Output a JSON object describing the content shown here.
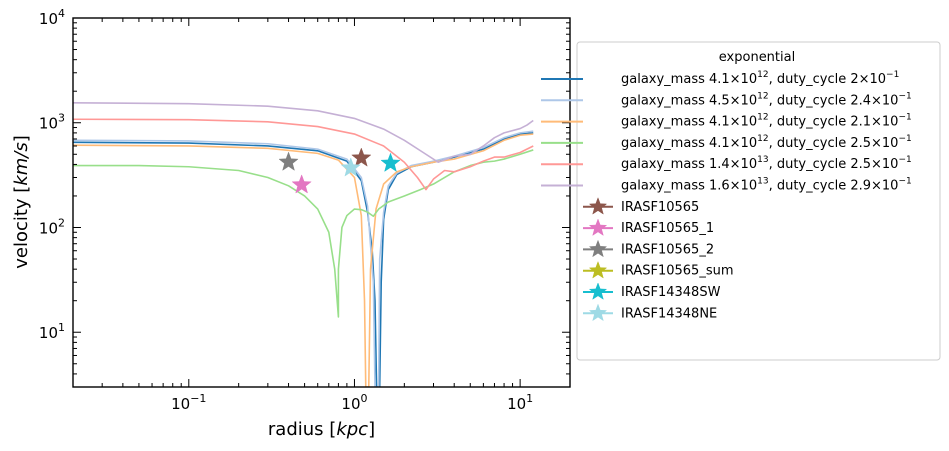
{
  "chart_data": {
    "type": "line",
    "xscale": "log",
    "yscale": "log",
    "xlim": [
      0.02,
      20
    ],
    "ylim": [
      3,
      10000
    ],
    "grid": false,
    "legend_placement": "right-outside",
    "xlabel_text": "radius",
    "xlabel_unit": "kpc",
    "ylabel_text": "velocity",
    "ylabel_unit": "km/s",
    "xticks": [
      {
        "value": 0.1,
        "base": "10",
        "exp": "−1"
      },
      {
        "value": 1,
        "base": "10",
        "exp": "0"
      },
      {
        "value": 10,
        "base": "10",
        "exp": "1"
      }
    ],
    "yticks": [
      {
        "value": 10,
        "base": "10",
        "exp": "1"
      },
      {
        "value": 100,
        "base": "10",
        "exp": "2"
      },
      {
        "value": 1000,
        "base": "10",
        "exp": "3"
      },
      {
        "value": 10000,
        "base": "10",
        "exp": "4"
      }
    ],
    "legend_title": "exponential",
    "series": [
      {
        "name_parts": [
          "galaxy_mass 4.1×10",
          "12",
          ", duty_cycle 2×10",
          "−1",
          ""
        ],
        "color": "#1f77b4",
        "points": [
          [
            0.02,
            650
          ],
          [
            0.1,
            640
          ],
          [
            0.3,
            600
          ],
          [
            0.6,
            540
          ],
          [
            0.9,
            430
          ],
          [
            1.1,
            280
          ],
          [
            1.2,
            140
          ],
          [
            1.28,
            60
          ],
          [
            1.33,
            20
          ],
          [
            1.36,
            3
          ],
          [
            1.42,
            3
          ],
          [
            1.45,
            30
          ],
          [
            1.5,
            120
          ],
          [
            1.6,
            230
          ],
          [
            1.8,
            320
          ],
          [
            2.2,
            380
          ],
          [
            3,
            420
          ],
          [
            4,
            470
          ],
          [
            5,
            520
          ],
          [
            6,
            560
          ],
          [
            8,
            700
          ],
          [
            10,
            780
          ],
          [
            12,
            800
          ]
        ]
      },
      {
        "name_parts": [
          "galaxy_mass 4.5×10",
          "12",
          ", duty_cycle 2.4×10",
          "−1",
          ""
        ],
        "color": "#aec7e8",
        "points": [
          [
            0.02,
            680
          ],
          [
            0.1,
            670
          ],
          [
            0.3,
            630
          ],
          [
            0.6,
            560
          ],
          [
            0.9,
            450
          ],
          [
            1.1,
            300
          ],
          [
            1.2,
            160
          ],
          [
            1.3,
            30
          ],
          [
            1.33,
            3
          ],
          [
            1.4,
            3
          ],
          [
            1.42,
            50
          ],
          [
            1.5,
            140
          ],
          [
            1.6,
            250
          ],
          [
            1.8,
            330
          ],
          [
            2.2,
            390
          ],
          [
            3,
            430
          ],
          [
            4,
            480
          ],
          [
            6,
            580
          ],
          [
            8,
            720
          ],
          [
            10,
            800
          ],
          [
            12,
            830
          ]
        ]
      },
      {
        "name_parts": [
          "galaxy_mass 4.1×10",
          "12",
          ", duty_cycle 2.1×10",
          "−1",
          ""
        ],
        "color": "#ffbb78",
        "points": [
          [
            0.02,
            610
          ],
          [
            0.1,
            600
          ],
          [
            0.3,
            570
          ],
          [
            0.6,
            510
          ],
          [
            0.8,
            440
          ],
          [
            1,
            300
          ],
          [
            1.1,
            130
          ],
          [
            1.15,
            20
          ],
          [
            1.17,
            3
          ],
          [
            1.22,
            3
          ],
          [
            1.25,
            40
          ],
          [
            1.35,
            150
          ],
          [
            1.5,
            260
          ],
          [
            1.8,
            340
          ],
          [
            2.2,
            380
          ],
          [
            3,
            420
          ],
          [
            4,
            450
          ],
          [
            6,
            540
          ],
          [
            8,
            680
          ],
          [
            10,
            760
          ],
          [
            12,
            780
          ]
        ]
      },
      {
        "name_parts": [
          "galaxy_mass 4.1×10",
          "12",
          ", duty_cycle 2.5×10",
          "−1",
          ""
        ],
        "color": "#98df8a",
        "points": [
          [
            0.02,
            390
          ],
          [
            0.05,
            390
          ],
          [
            0.1,
            380
          ],
          [
            0.2,
            350
          ],
          [
            0.3,
            300
          ],
          [
            0.4,
            250
          ],
          [
            0.5,
            200
          ],
          [
            0.6,
            150
          ],
          [
            0.7,
            90
          ],
          [
            0.76,
            40
          ],
          [
            0.8,
            14
          ],
          [
            0.8,
            40
          ],
          [
            0.84,
            100
          ],
          [
            0.9,
            130
          ],
          [
            1,
            150
          ],
          [
            1.1,
            148
          ],
          [
            1.2,
            140
          ],
          [
            1.3,
            128
          ],
          [
            1.4,
            150
          ],
          [
            1.6,
            175
          ],
          [
            2,
            200
          ],
          [
            2.5,
            230
          ],
          [
            3,
            260
          ],
          [
            4,
            340
          ],
          [
            5,
            390
          ],
          [
            6,
            420
          ],
          [
            7,
            430
          ],
          [
            8,
            450
          ],
          [
            10,
            500
          ],
          [
            12,
            550
          ]
        ]
      },
      {
        "name_parts": [
          "galaxy_mass 1.4×10",
          "13",
          ", duty_cycle 2.5×10",
          "−1",
          ""
        ],
        "color": "#ff9896",
        "points": [
          [
            0.02,
            1080
          ],
          [
            0.1,
            1070
          ],
          [
            0.3,
            1020
          ],
          [
            0.6,
            920
          ],
          [
            1,
            780
          ],
          [
            1.5,
            600
          ],
          [
            2,
            420
          ],
          [
            2.4,
            300
          ],
          [
            2.7,
            230
          ],
          [
            3,
            290
          ],
          [
            3.5,
            350
          ],
          [
            4,
            340
          ],
          [
            5,
            380
          ],
          [
            6,
            430
          ],
          [
            7,
            470
          ],
          [
            8,
            470
          ],
          [
            10,
            520
          ],
          [
            12,
            600
          ]
        ]
      },
      {
        "name_parts": [
          "galaxy_mass 1.6×10",
          "13",
          ", duty_cycle 2.9×10",
          "−1",
          ""
        ],
        "color": "#c5b0d5",
        "points": [
          [
            0.02,
            1550
          ],
          [
            0.1,
            1520
          ],
          [
            0.3,
            1440
          ],
          [
            0.6,
            1300
          ],
          [
            1,
            1100
          ],
          [
            1.5,
            870
          ],
          [
            2,
            680
          ],
          [
            2.6,
            520
          ],
          [
            3.2,
            420
          ],
          [
            4,
            480
          ],
          [
            5,
            500
          ],
          [
            6,
            600
          ],
          [
            7,
            720
          ],
          [
            8,
            800
          ],
          [
            10,
            880
          ],
          [
            11,
            950
          ],
          [
            12,
            1050
          ]
        ]
      }
    ],
    "markers": [
      {
        "name": "IRASF10565",
        "color": "#8c564b",
        "x": 1.1,
        "y": 460
      },
      {
        "name": "IRASF10565_1",
        "color": "#e377c2",
        "x": 0.48,
        "y": 255
      },
      {
        "name": "IRASF10565_2",
        "color": "#7f7f7f",
        "x": 0.4,
        "y": 420
      },
      {
        "name": "IRASF10565_sum",
        "color": "#bcbd22",
        "x": null,
        "y": null
      },
      {
        "name": "IRASF14348SW",
        "color": "#17becf",
        "x": 1.65,
        "y": 410
      },
      {
        "name": "IRASF14348NE",
        "color": "#9edae5",
        "x": 0.95,
        "y": 370
      }
    ]
  }
}
